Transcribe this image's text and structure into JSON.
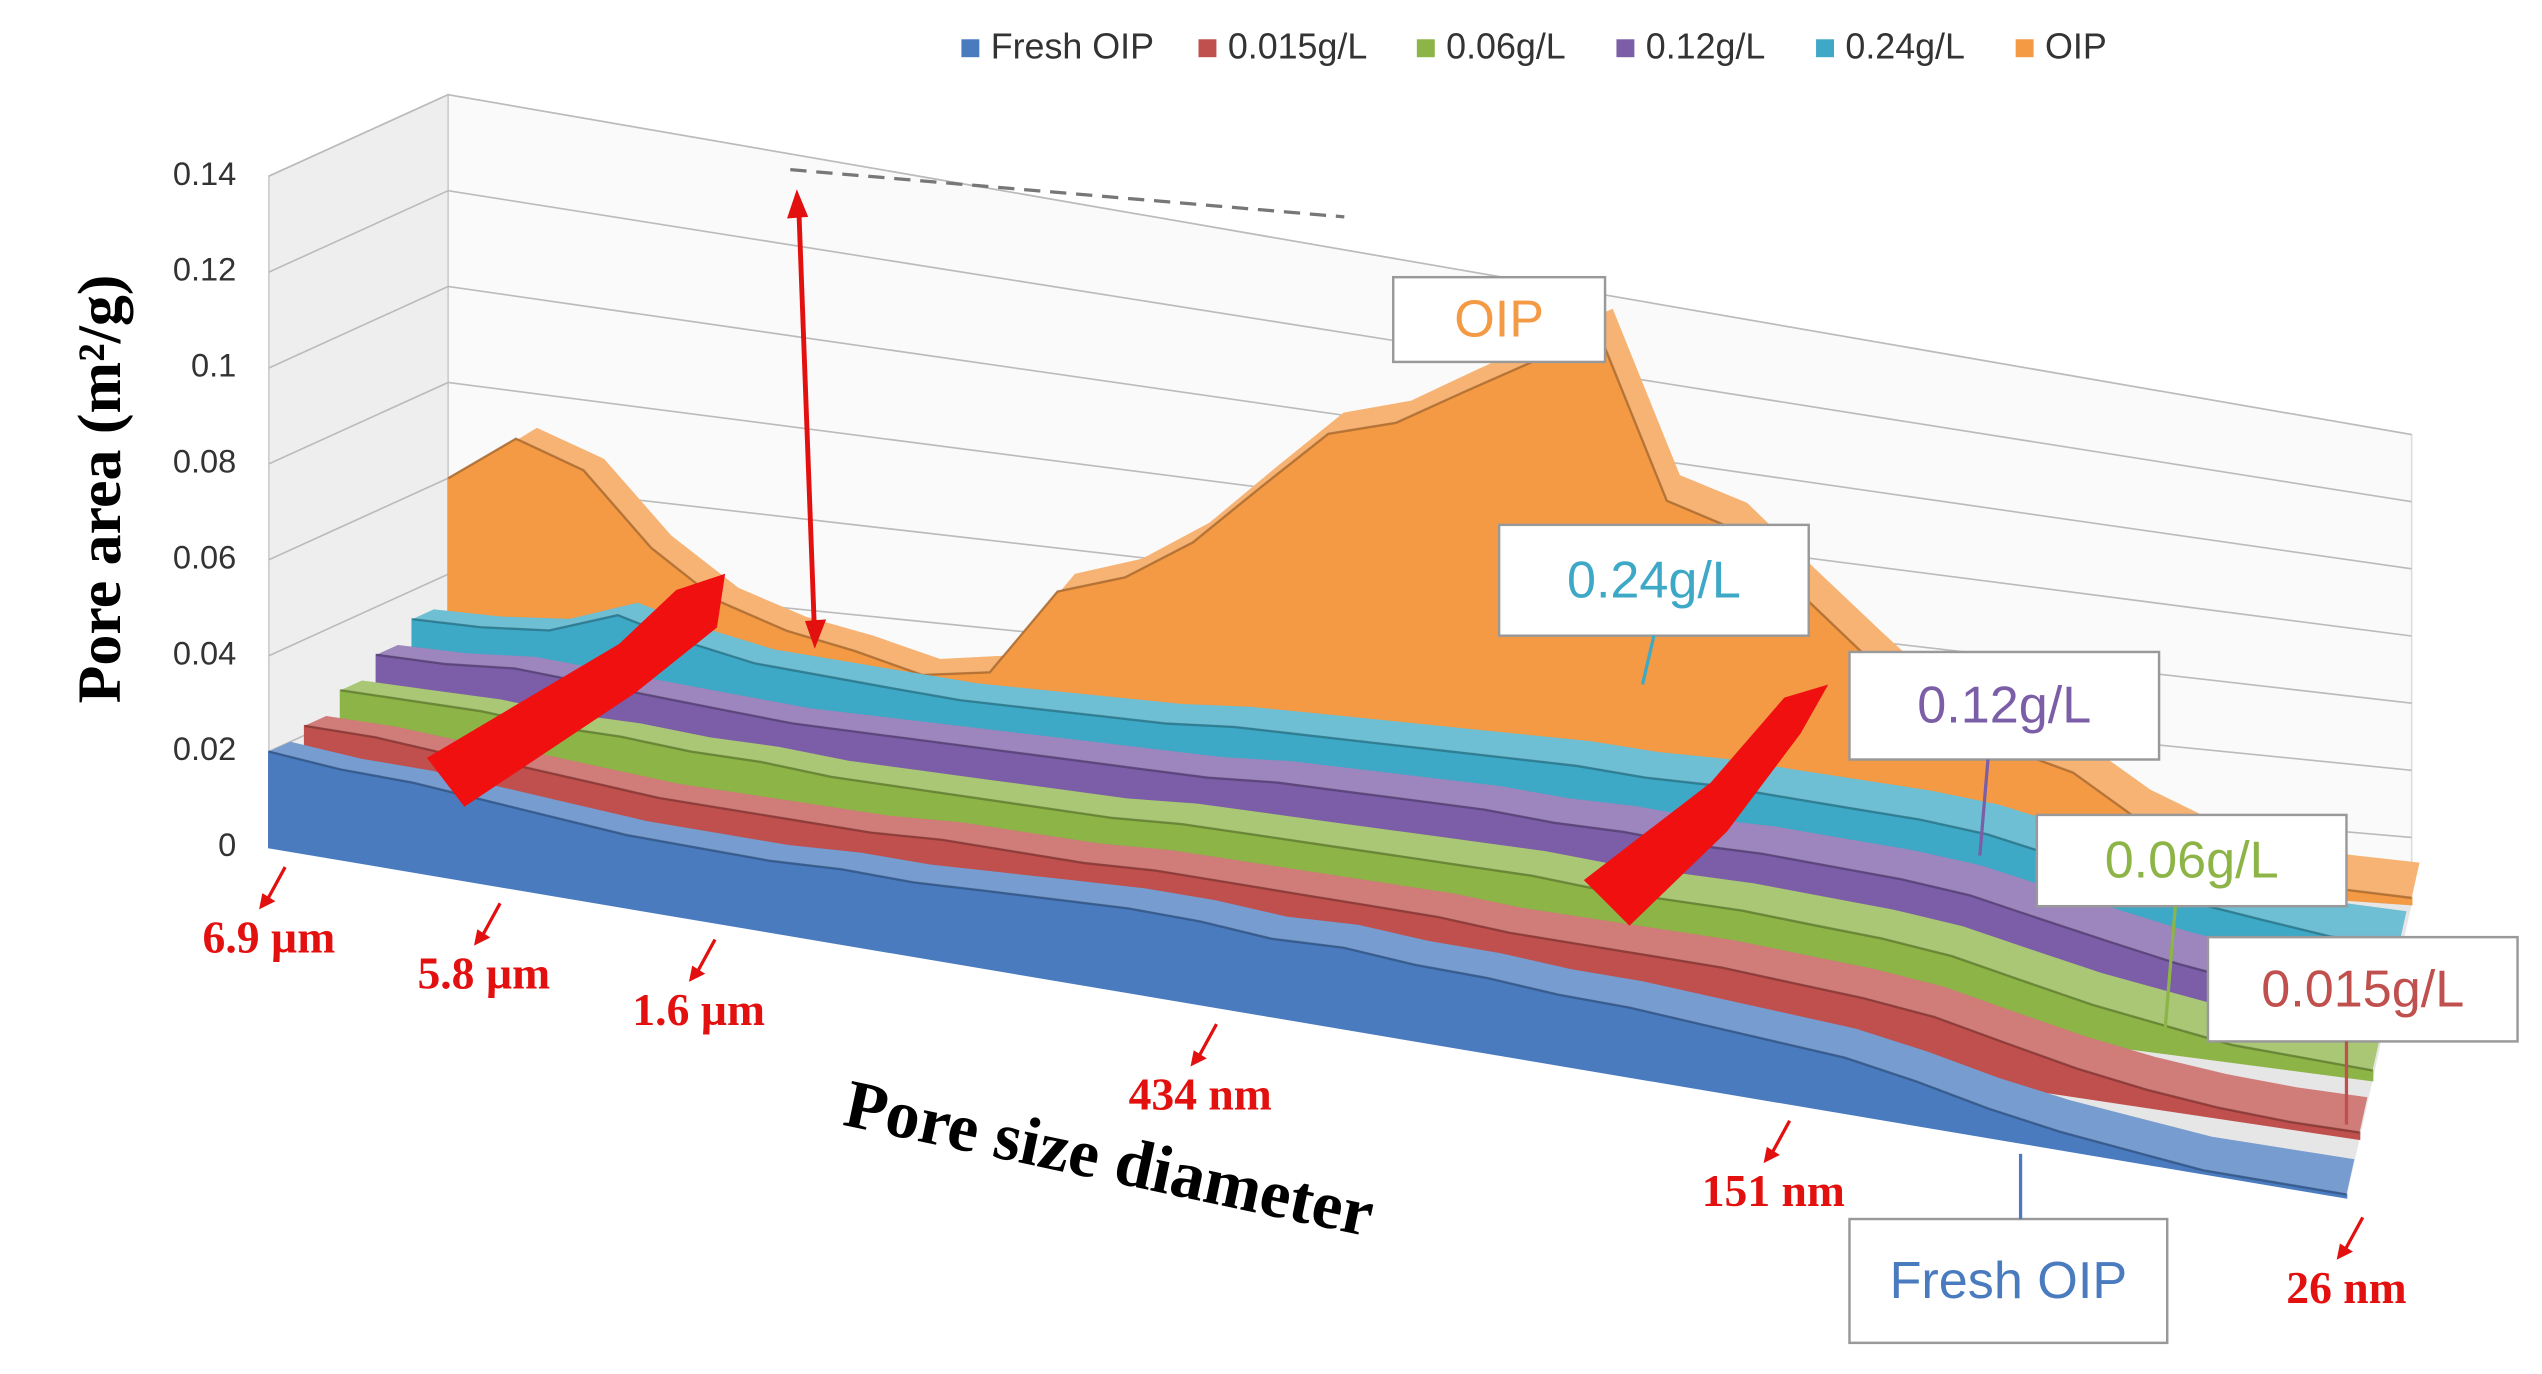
{
  "chart_data": {
    "type": "area3d",
    "y_label": "Pore area (m²/g)",
    "x_label": "Pore size diameter",
    "categories": [
      "6.9 µm",
      null,
      null,
      "5.8 µm",
      null,
      null,
      "1.6 µm",
      null,
      null,
      null,
      null,
      null,
      null,
      "434 nm",
      null,
      null,
      null,
      null,
      null,
      null,
      null,
      "151 nm",
      null,
      null,
      null,
      null,
      null,
      null,
      null,
      "26 nm"
    ],
    "series": [
      {
        "name": "Fresh OIP",
        "color": "#4a7bbf",
        "values": [
          0.02,
          0.019,
          0.019,
          0.018,
          0.017,
          0.016,
          0.016,
          0.016,
          0.017,
          0.017,
          0.018,
          0.019,
          0.02,
          0.02,
          0.019,
          0.02,
          0.019,
          0.019,
          0.018,
          0.018,
          0.017,
          0.016,
          0.015,
          0.012,
          0.008,
          0.005,
          0.003,
          0.001,
          0.001,
          0.001
        ]
      },
      {
        "name": "0.015g/L",
        "color": "#c0504d",
        "values": [
          0.022,
          0.022,
          0.021,
          0.021,
          0.02,
          0.019,
          0.019,
          0.019,
          0.019,
          0.02,
          0.02,
          0.02,
          0.021,
          0.021,
          0.021,
          0.021,
          0.021,
          0.02,
          0.02,
          0.02,
          0.02,
          0.019,
          0.018,
          0.016,
          0.012,
          0.008,
          0.005,
          0.003,
          0.002,
          0.002
        ]
      },
      {
        "name": "0.06g/L",
        "color": "#8db447",
        "values": [
          0.026,
          0.026,
          0.026,
          0.025,
          0.025,
          0.024,
          0.024,
          0.023,
          0.023,
          0.023,
          0.023,
          0.023,
          0.024,
          0.024,
          0.024,
          0.024,
          0.024,
          0.024,
          0.023,
          0.023,
          0.023,
          0.022,
          0.021,
          0.019,
          0.015,
          0.011,
          0.008,
          0.005,
          0.004,
          0.003
        ]
      },
      {
        "name": "0.12g/L",
        "color": "#7b5ea7",
        "values": [
          0.03,
          0.03,
          0.031,
          0.03,
          0.029,
          0.028,
          0.027,
          0.027,
          0.027,
          0.027,
          0.027,
          0.027,
          0.027,
          0.028,
          0.028,
          0.028,
          0.028,
          0.027,
          0.027,
          0.026,
          0.026,
          0.025,
          0.024,
          0.022,
          0.018,
          0.014,
          0.01,
          0.007,
          0.005,
          0.004
        ]
      },
      {
        "name": "0.24g/L",
        "color": "#3ea9c6",
        "values": [
          0.034,
          0.034,
          0.035,
          0.04,
          0.036,
          0.033,
          0.032,
          0.031,
          0.03,
          0.03,
          0.03,
          0.03,
          0.031,
          0.031,
          0.031,
          0.031,
          0.031,
          0.031,
          0.03,
          0.03,
          0.029,
          0.028,
          0.027,
          0.025,
          0.021,
          0.016,
          0.012,
          0.009,
          0.006,
          0.005
        ]
      },
      {
        "name": "OIP",
        "color": "#f49a45",
        "values": [
          0.06,
          0.07,
          0.065,
          0.05,
          0.04,
          0.035,
          0.032,
          0.028,
          0.03,
          0.05,
          0.055,
          0.065,
          0.08,
          0.095,
          0.1,
          0.11,
          0.12,
          0.13,
          0.09,
          0.085,
          0.07,
          0.055,
          0.04,
          0.035,
          0.03,
          0.018,
          0.01,
          0.005,
          0.003,
          0.002
        ]
      }
    ],
    "annotations": [
      "OIP",
      "0.24g/L",
      "0.12g/L",
      "0.06g/L",
      "0.015g/L",
      "Fresh OIP"
    ],
    "ylim": [
      0,
      0.14
    ],
    "yticks": [
      0,
      0.02,
      0.04,
      0.06,
      0.08,
      0.1,
      0.12,
      0.14
    ],
    "grid": true,
    "legend": "top"
  }
}
